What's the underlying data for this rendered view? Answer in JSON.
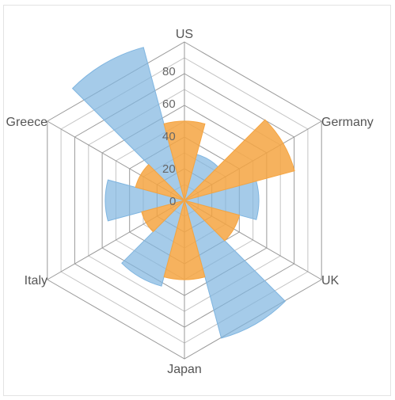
{
  "chart_data": {
    "type": "polar-rose",
    "categories": [
      "US",
      "Germany",
      "UK",
      "Japan",
      "Italy",
      "Greece"
    ],
    "rlim": [
      0,
      90
    ],
    "r_ticks": [
      0,
      20,
      40,
      60,
      80
    ],
    "grid": true,
    "series": [
      {
        "color": "#f5a542",
        "values": [
          50,
          72,
          36,
          50,
          28,
          32
        ]
      },
      {
        "color": "#7fb5e0",
        "values": [
          30,
          47,
          90,
          56,
          50,
          100
        ]
      }
    ],
    "tick_labels": [
      "0",
      "20",
      "40",
      "60",
      "80"
    ]
  }
}
